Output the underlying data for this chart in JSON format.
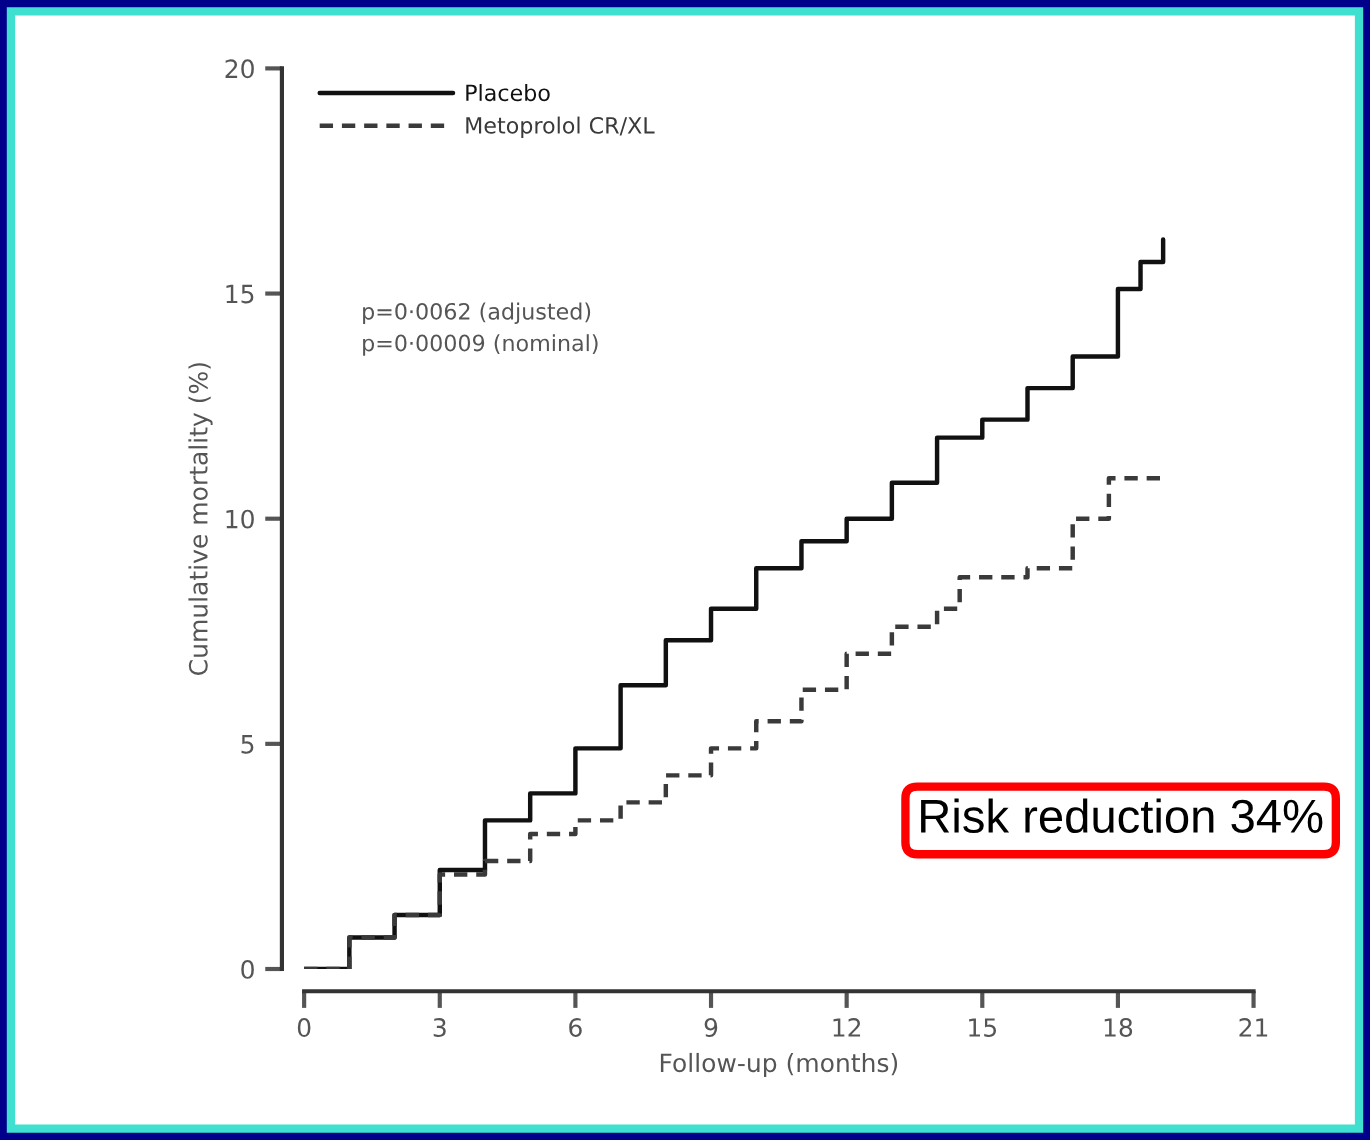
{
  "chart_data": {
    "type": "step",
    "xlabel": "Follow-up (months)",
    "ylabel": "Cumulative mortality (%)",
    "xlim": [
      0,
      21
    ],
    "ylim": [
      0,
      20
    ],
    "xticks": [
      0,
      3,
      6,
      9,
      12,
      15,
      18,
      21
    ],
    "yticks": [
      0,
      5,
      10,
      15,
      20
    ],
    "legend": "top left",
    "grid": false,
    "series": [
      {
        "name": "Placebo",
        "color": "#111111",
        "line_style": "solid",
        "x": [
          0,
          1,
          2,
          3,
          4,
          5,
          6,
          7,
          8,
          9,
          10,
          11,
          12,
          13,
          14,
          15,
          16,
          17,
          18,
          18.5,
          19
        ],
        "values": [
          0,
          0.7,
          1.2,
          2.2,
          3.3,
          3.9,
          4.9,
          6.3,
          7.3,
          8.0,
          8.9,
          9.5,
          10.0,
          10.8,
          11.8,
          12.2,
          12.9,
          13.6,
          15.1,
          15.7,
          16.2
        ]
      },
      {
        "name": "Metoprolol CR/XL",
        "color": "#3a3a3a",
        "line_style": "dashed",
        "x": [
          0,
          1,
          2,
          3,
          4,
          5,
          6,
          7,
          8,
          9,
          10,
          11,
          12,
          13,
          14,
          14.5,
          16,
          17,
          17.8,
          19
        ],
        "values": [
          0,
          0.7,
          1.2,
          2.1,
          2.4,
          3.0,
          3.3,
          3.7,
          4.3,
          4.9,
          5.5,
          6.2,
          7.0,
          7.6,
          8.0,
          8.7,
          8.9,
          10.0,
          10.9,
          10.9
        ]
      }
    ],
    "annotations": [
      "p=0·0062 (adjusted)\np=0·00009 (nominal)",
      "Risk reduction 34%"
    ]
  }
}
